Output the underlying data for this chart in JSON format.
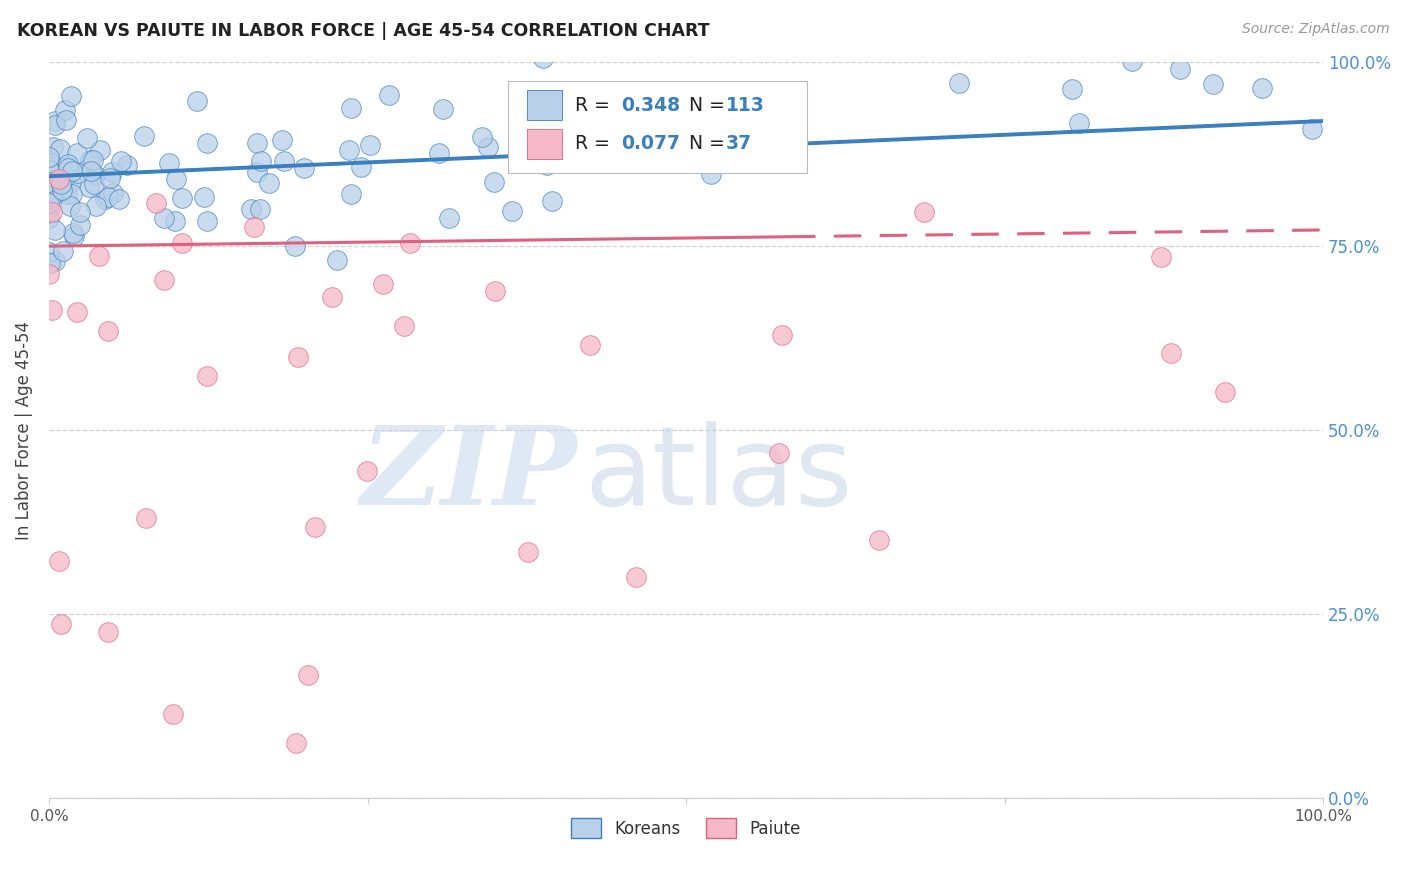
{
  "title": "KOREAN VS PAIUTE IN LABOR FORCE | AGE 45-54 CORRELATION CHART",
  "source_text": "Source: ZipAtlas.com",
  "ylabel": "In Labor Force | Age 45-54",
  "watermark_zip": "ZIP",
  "watermark_atlas": "atlas",
  "ytick_labels": [
    "0.0%",
    "25.0%",
    "50.0%",
    "75.0%",
    "100.0%"
  ],
  "ytick_values": [
    0,
    0.25,
    0.5,
    0.75,
    1.0
  ],
  "xlim": [
    0,
    1
  ],
  "ylim": [
    0,
    1
  ],
  "blue_scatter_color": "#b8d0e8",
  "pink_scatter_color": "#f5b8c8",
  "blue_line_color": "#3a7fc1",
  "pink_line_color": "#e06080",
  "title_color": "#222222",
  "source_color": "#999999",
  "right_axis_color": "#4a90d9",
  "grid_color": "#cccccc",
  "background_color": "#ffffff",
  "korean_R": 0.348,
  "korean_N": 113,
  "paiute_R": 0.077,
  "paiute_N": 37,
  "korean_intercept": 0.845,
  "korean_slope": 0.075,
  "paiute_intercept": 0.75,
  "paiute_slope": 0.022
}
